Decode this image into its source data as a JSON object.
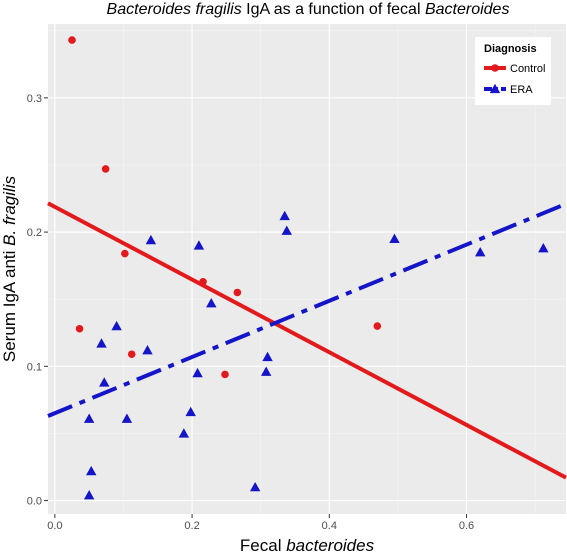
{
  "chart_data": {
    "type": "scatter",
    "title": {
      "parts": [
        {
          "text": "Bacteroides fragilis",
          "italic": true
        },
        {
          "text": " IgA as a function of fecal ",
          "italic": false
        },
        {
          "text": "Bacteroides",
          "italic": true
        }
      ]
    },
    "xlabel": {
      "parts": [
        {
          "text": "Fecal ",
          "italic": false
        },
        {
          "text": "bacteroides",
          "italic": true
        }
      ]
    },
    "ylabel": {
      "parts": [
        {
          "text": "Serum IgA anti ",
          "italic": false
        },
        {
          "text": "B. fragilis",
          "italic": true
        }
      ]
    },
    "xlim": [
      -0.01,
      0.745
    ],
    "ylim": [
      -0.01,
      0.355
    ],
    "xticks": [
      {
        "value": 0.0,
        "label": "0.0"
      },
      {
        "value": 0.2,
        "label": "0.2"
      },
      {
        "value": 0.4,
        "label": "0.4"
      },
      {
        "value": 0.6,
        "label": "0.6"
      }
    ],
    "yticks": [
      {
        "value": 0.0,
        "label": "0.0"
      },
      {
        "value": 0.1,
        "label": "0.1"
      },
      {
        "value": 0.2,
        "label": "0.2"
      },
      {
        "value": 0.3,
        "label": "0.3"
      }
    ],
    "grid": true,
    "legend": {
      "title": "Diagnosis",
      "position": "top-right"
    },
    "series": [
      {
        "name": "Control",
        "marker": "circle",
        "color": "#e31a1c",
        "line_style": "solid",
        "points": [
          {
            "x": 0.025,
            "y": 0.343
          },
          {
            "x": 0.074,
            "y": 0.247
          },
          {
            "x": 0.102,
            "y": 0.184
          },
          {
            "x": 0.216,
            "y": 0.163
          },
          {
            "x": 0.266,
            "y": 0.155
          },
          {
            "x": 0.036,
            "y": 0.128
          },
          {
            "x": 0.112,
            "y": 0.109
          },
          {
            "x": 0.248,
            "y": 0.094
          },
          {
            "x": 0.47,
            "y": 0.13
          }
        ],
        "fit": {
          "x1": -0.01,
          "y1": 0.2215,
          "x2": 0.745,
          "y2": 0.0171
        }
      },
      {
        "name": "ERA",
        "marker": "triangle",
        "color": "#1414c8",
        "line_style": "dashdot",
        "points": [
          {
            "x": 0.14,
            "y": 0.194
          },
          {
            "x": 0.21,
            "y": 0.19
          },
          {
            "x": 0.335,
            "y": 0.212
          },
          {
            "x": 0.338,
            "y": 0.201
          },
          {
            "x": 0.495,
            "y": 0.195
          },
          {
            "x": 0.62,
            "y": 0.185
          },
          {
            "x": 0.712,
            "y": 0.188
          },
          {
            "x": 0.228,
            "y": 0.147
          },
          {
            "x": 0.09,
            "y": 0.13
          },
          {
            "x": 0.068,
            "y": 0.117
          },
          {
            "x": 0.135,
            "y": 0.112
          },
          {
            "x": 0.072,
            "y": 0.088
          },
          {
            "x": 0.208,
            "y": 0.095
          },
          {
            "x": 0.31,
            "y": 0.107
          },
          {
            "x": 0.308,
            "y": 0.096
          },
          {
            "x": 0.05,
            "y": 0.061
          },
          {
            "x": 0.105,
            "y": 0.061
          },
          {
            "x": 0.198,
            "y": 0.066
          },
          {
            "x": 0.188,
            "y": 0.05
          },
          {
            "x": 0.053,
            "y": 0.022
          },
          {
            "x": 0.05,
            "y": 0.004
          },
          {
            "x": 0.292,
            "y": 0.01
          }
        ],
        "fit": {
          "x1": -0.01,
          "y1": 0.063,
          "x2": 0.745,
          "y2": 0.221
        }
      }
    ]
  }
}
